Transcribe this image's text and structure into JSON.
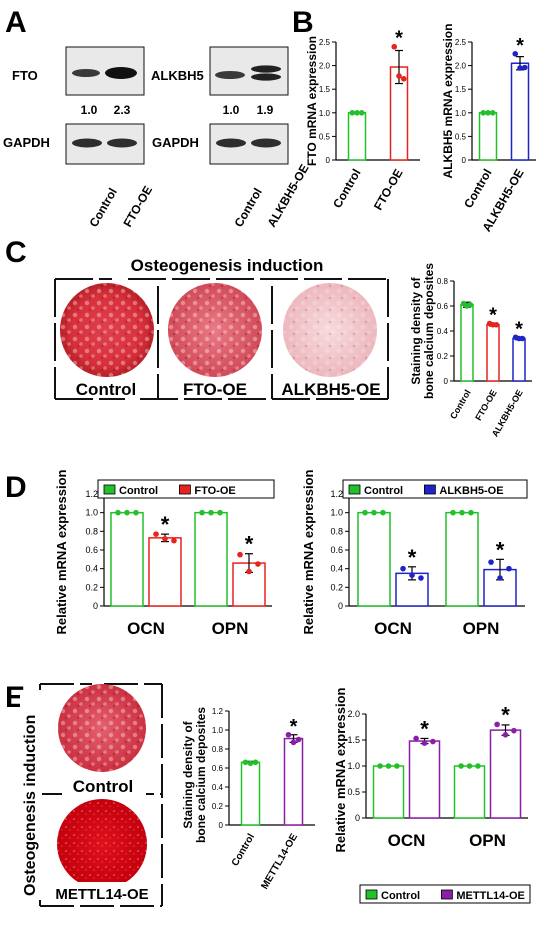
{
  "panels": {
    "A": {
      "letter": "A",
      "fto_label": "FTO",
      "alkbh5_label": "ALKBH5",
      "gapdh_label": "GAPDH",
      "fto_ratios": [
        "1.0",
        "2.3"
      ],
      "alkbh5_ratios": [
        "1.0",
        "1.9"
      ],
      "fto_lanes": [
        "Control",
        "FTO-OE"
      ],
      "alkbh5_lanes": [
        "Control",
        "ALKBH5-OE"
      ]
    },
    "B": {
      "letter": "B"
    },
    "C": {
      "letter": "C",
      "title": "Osteogenesis induction",
      "wells": [
        "Control",
        "FTO-OE",
        "ALKBH5-OE"
      ]
    },
    "D": {
      "letter": "D"
    },
    "E": {
      "letter": "E",
      "side_title": "Osteogenesis induction",
      "wells": [
        "Control",
        "METTL14-OE"
      ]
    }
  },
  "colors": {
    "control": "#22c02a",
    "fto": "#e8221c",
    "alkbh5": "#1f24c8",
    "mettl14": "#8a1ea6"
  },
  "chart_data": [
    {
      "id": "B-FTO",
      "type": "bar",
      "categories": [
        "Control",
        "FTO-OE"
      ],
      "values": [
        1.0,
        1.97
      ],
      "points": [
        [
          1.0,
          1.0,
          1.0
        ],
        [
          2.4,
          1.78,
          1.72
        ]
      ],
      "error": [
        0,
        0.35
      ],
      "sig": [
        "",
        "*"
      ],
      "colors": [
        "#22c02a",
        "#e8221c"
      ],
      "ylabel": "FTO mRNA expression",
      "ylim": [
        0,
        2.5
      ],
      "yticks": [
        "0",
        "0.5",
        "1.0",
        "1.5",
        "2.0",
        "2.5"
      ]
    },
    {
      "id": "B-ALKBH5",
      "type": "bar",
      "categories": [
        "Control",
        "ALKBH5-OE"
      ],
      "values": [
        1.0,
        2.05
      ],
      "points": [
        [
          1.0,
          1.0,
          1.0
        ],
        [
          2.25,
          1.95,
          1.96
        ]
      ],
      "error": [
        0,
        0.14
      ],
      "sig": [
        "",
        "*"
      ],
      "colors": [
        "#22c02a",
        "#1f24c8"
      ],
      "ylabel": "ALKBH5 mRNA expression",
      "ylim": [
        0,
        2.5
      ],
      "yticks": [
        "0",
        "0.5",
        "1.0",
        "1.5",
        "2.0",
        "2.5"
      ]
    },
    {
      "id": "C-staining",
      "type": "bar",
      "categories": [
        "Control",
        "FTO-OE",
        "ALKBH5-OE"
      ],
      "values": [
        0.61,
        0.45,
        0.34
      ],
      "points": [
        [
          0.62,
          0.6,
          0.61
        ],
        [
          0.46,
          0.45,
          0.45
        ],
        [
          0.35,
          0.34,
          0.34
        ]
      ],
      "error": [
        0.02,
        0.01,
        0.01
      ],
      "sig": [
        "",
        "*",
        "*"
      ],
      "colors": [
        "#22c02a",
        "#e8221c",
        "#1f24c8"
      ],
      "ylabel": "Staining density of bone calcium deposites",
      "ylim": [
        0,
        0.8
      ],
      "yticks": [
        "0",
        "0.2",
        "0.4",
        "0.6",
        "0.8"
      ]
    },
    {
      "id": "D-FTO",
      "type": "bar",
      "categories": [
        "OCN",
        "OPN"
      ],
      "series": [
        {
          "name": "Control",
          "values": [
            1.0,
            1.0
          ],
          "points": [
            [
              1.0,
              1.0,
              1.0
            ],
            [
              1.0,
              1.0,
              1.0
            ]
          ],
          "error": [
            0,
            0
          ]
        },
        {
          "name": "FTO-OE",
          "values": [
            0.73,
            0.46
          ],
          "points": [
            [
              0.77,
              0.72,
              0.7
            ],
            [
              0.55,
              0.37,
              0.45
            ]
          ],
          "error": [
            0.04,
            0.1
          ]
        }
      ],
      "sig": [
        [
          "",
          "*"
        ],
        [
          "",
          "*"
        ]
      ],
      "colors": [
        "#22c02a",
        "#e8221c"
      ],
      "ylabel": "Relative mRNA expression",
      "ylim": [
        0,
        1.2
      ],
      "yticks": [
        "0",
        "0.2",
        "0.4",
        "0.6",
        "0.8",
        "1.0",
        "1.2"
      ],
      "legend": "top"
    },
    {
      "id": "D-ALKBH5",
      "type": "bar",
      "categories": [
        "OCN",
        "OPN"
      ],
      "series": [
        {
          "name": "Control",
          "values": [
            1.0,
            1.0
          ],
          "points": [
            [
              1.0,
              1.0,
              1.0
            ],
            [
              1.0,
              1.0,
              1.0
            ]
          ],
          "error": [
            0,
            0
          ]
        },
        {
          "name": "ALKBH5-OE",
          "values": [
            0.35,
            0.39
          ],
          "points": [
            [
              0.4,
              0.33,
              0.3
            ],
            [
              0.47,
              0.3,
              0.4
            ]
          ],
          "error": [
            0.07,
            0.11
          ]
        }
      ],
      "sig": [
        [
          "",
          "*"
        ],
        [
          "",
          "*"
        ]
      ],
      "colors": [
        "#22c02a",
        "#1f24c8"
      ],
      "ylabel": "Relative mRNA expression",
      "ylim": [
        0,
        1.2
      ],
      "yticks": [
        "0",
        "0.2",
        "0.4",
        "0.6",
        "0.8",
        "1.0",
        "1.2"
      ],
      "legend": "top"
    },
    {
      "id": "E-staining",
      "type": "bar",
      "categories": [
        "Control",
        "METTL14-OE"
      ],
      "values": [
        0.66,
        0.91
      ],
      "points": [
        [
          0.66,
          0.65,
          0.66
        ],
        [
          0.95,
          0.87,
          0.9
        ]
      ],
      "error": [
        0.01,
        0.04
      ],
      "sig": [
        "",
        "*"
      ],
      "colors": [
        "#22c02a",
        "#8a1ea6"
      ],
      "ylabel": "Staining density of bone calcium deposites",
      "ylim": [
        0,
        1.2
      ],
      "yticks": [
        "0",
        "0.2",
        "0.4",
        "0.6",
        "0.8",
        "1.0",
        "1.2"
      ]
    },
    {
      "id": "E-mRNA",
      "type": "bar",
      "categories": [
        "OCN",
        "OPN"
      ],
      "series": [
        {
          "name": "Control",
          "values": [
            1.0,
            1.0
          ],
          "points": [
            [
              1.0,
              1.0,
              1.0
            ],
            [
              1.0,
              1.0,
              1.0
            ]
          ],
          "error": [
            0,
            0
          ]
        },
        {
          "name": "METTL14-OE",
          "values": [
            1.48,
            1.69
          ],
          "points": [
            [
              1.53,
              1.44,
              1.47
            ],
            [
              1.8,
              1.6,
              1.68
            ]
          ],
          "error": [
            0.05,
            0.1
          ]
        }
      ],
      "sig": [
        [
          "",
          "*"
        ],
        [
          "",
          "*"
        ]
      ],
      "colors": [
        "#22c02a",
        "#8a1ea6"
      ],
      "ylabel": "Relative mRNA expression",
      "ylim": [
        0,
        2.0
      ],
      "yticks": [
        "0",
        "0.5",
        "1.0",
        "1.5",
        "2.0"
      ],
      "legend": "bottom"
    }
  ]
}
